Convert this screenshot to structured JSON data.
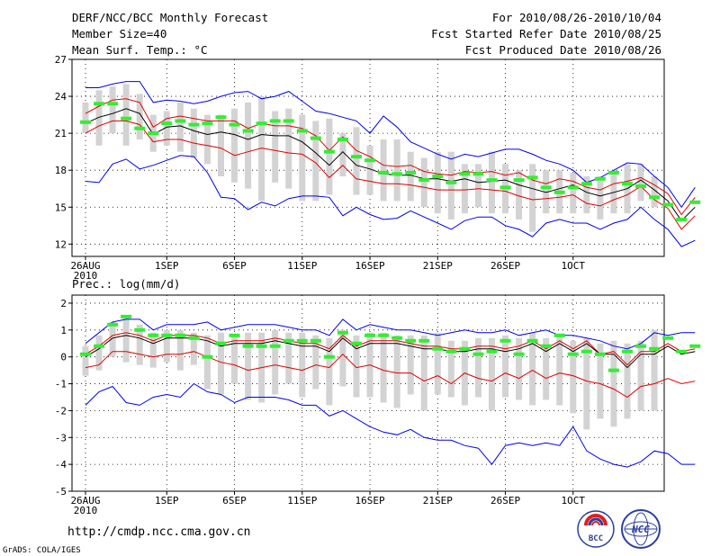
{
  "header": {
    "title": "DERF/NCC/BCC Monthly Forecast",
    "member_size": "Member Size=40",
    "variable": "Mean Surf. Temp.: °C",
    "forecast_range": "For 2010/08/26-2010/10/04",
    "start_date": "Fcst Started Refer Date 2010/08/25",
    "produced_date": "Fcst Produced Date 2010/08/26"
  },
  "footer": {
    "url": "http://cmdp.ncc.cma.gov.cn",
    "grads": "GrADS: COLA/IGES",
    "logo_bcc": "BCC",
    "logo_ncc": "NCC"
  },
  "colors": {
    "envelope": "#0000ee",
    "spread": "#e00000",
    "mean": "#000000",
    "median": "#33ee33",
    "box": "#d3d3d3"
  },
  "chart_data": [
    {
      "type": "line",
      "title": "Mean Surf. Temp.: °C",
      "ylim": [
        11,
        27
      ],
      "yticks": [
        12,
        15,
        18,
        21,
        24,
        27
      ],
      "grid": true,
      "x_tick_days": [
        0,
        6,
        11,
        16,
        21,
        26,
        31,
        36
      ],
      "x_tick_labels": [
        "26AUG",
        "1SEP",
        "6SEP",
        "11SEP",
        "16SEP",
        "21SEP",
        "26SEP",
        "1OCT"
      ],
      "x_year_label": "2010",
      "days": 40,
      "series": [
        {
          "name": "max",
          "values": [
            24.7,
            24.7,
            25.0,
            25.2,
            25.2,
            23.5,
            23.7,
            23.6,
            23.4,
            23.6,
            24.0,
            24.3,
            24.4,
            23.8,
            24.0,
            24.4,
            23.6,
            22.8,
            22.6,
            22.3,
            22.0,
            21.0,
            22.4,
            21.5,
            20.3,
            19.8,
            19.3,
            18.9,
            19.3,
            19.1,
            19.4,
            19.7,
            19.7,
            19.3,
            18.8,
            18.5,
            18.0,
            17.0,
            17.4,
            18.0,
            18.6,
            18.5,
            17.5,
            16.6,
            15.0,
            16.6
          ]
        },
        {
          "name": "p75",
          "values": [
            22.6,
            23.2,
            23.7,
            23.8,
            23.5,
            21.5,
            22.2,
            22.4,
            22.2,
            22.0,
            22.0,
            22.0,
            21.4,
            21.8,
            21.6,
            21.6,
            21.4,
            20.8,
            19.6,
            20.7,
            19.6,
            19.1,
            18.4,
            18.3,
            18.4,
            17.9,
            17.7,
            17.6,
            17.9,
            17.8,
            17.9,
            17.6,
            17.8,
            17.2,
            16.9,
            17.3,
            17.1,
            16.6,
            16.4,
            16.9,
            17.1,
            17.4,
            16.8,
            16.1,
            14.4,
            15.8
          ]
        },
        {
          "name": "mean",
          "values": [
            21.8,
            22.3,
            22.6,
            23.0,
            22.6,
            20.9,
            21.5,
            21.6,
            21.2,
            20.9,
            21.1,
            20.9,
            20.5,
            20.9,
            20.8,
            20.8,
            20.3,
            19.4,
            18.4,
            19.5,
            18.4,
            18.1,
            17.7,
            17.6,
            17.6,
            17.3,
            17.3,
            17.1,
            17.3,
            17.0,
            17.1,
            17.2,
            16.8,
            16.5,
            16.2,
            16.5,
            16.8,
            16.2,
            15.9,
            16.2,
            16.5,
            17.2,
            16.4,
            15.5,
            13.9,
            15.0
          ]
        },
        {
          "name": "p25",
          "values": [
            21.0,
            21.6,
            22.0,
            22.0,
            21.7,
            20.3,
            20.5,
            20.5,
            20.2,
            20.0,
            19.8,
            19.2,
            19.5,
            19.8,
            19.6,
            19.4,
            19.3,
            18.6,
            17.4,
            18.4,
            17.3,
            17.1,
            16.9,
            16.9,
            16.8,
            16.6,
            16.4,
            16.4,
            16.4,
            16.5,
            16.4,
            16.3,
            15.9,
            15.6,
            15.7,
            15.8,
            16.0,
            15.3,
            15.1,
            15.6,
            16.0,
            16.7,
            15.6,
            14.9,
            13.2,
            14.3
          ]
        },
        {
          "name": "min",
          "values": [
            17.1,
            17.0,
            18.5,
            18.9,
            18.1,
            18.4,
            18.8,
            19.2,
            19.1,
            17.8,
            15.8,
            15.7,
            14.8,
            15.4,
            15.1,
            15.7,
            15.9,
            15.9,
            15.8,
            14.3,
            15.0,
            14.4,
            14.0,
            14.1,
            14.7,
            14.2,
            13.7,
            13.2,
            13.9,
            14.2,
            14.2,
            13.5,
            13.2,
            12.6,
            13.7,
            14.0,
            13.7,
            13.7,
            13.2,
            13.7,
            14.0,
            15.0,
            14.0,
            13.2,
            11.8,
            12.3
          ]
        },
        {
          "name": "box_high",
          "values": [
            23.5,
            24.5,
            24.8,
            25.0,
            24.2,
            22.5,
            22.8,
            23.5,
            23.0,
            22.5,
            22.5,
            23.0,
            23.5,
            24.0,
            22.8,
            23.0,
            22.5,
            22.0,
            22.2,
            21.0,
            21.5,
            20.0,
            20.5,
            20.5,
            19.5,
            19.0,
            19.5,
            19.5,
            18.5,
            18.5,
            19.5,
            18.5,
            18.0,
            18.5,
            18.0,
            18.0,
            17.8,
            17.5,
            17.5,
            18.0,
            18.5,
            18.5,
            17.5,
            17.0,
            16.0,
            17.5
          ]
        },
        {
          "name": "box_low",
          "values": [
            21.0,
            20.0,
            21.0,
            20.0,
            20.5,
            19.5,
            20.0,
            19.5,
            19.0,
            18.5,
            17.5,
            17.0,
            16.5,
            15.5,
            17.0,
            16.5,
            15.5,
            15.5,
            16.0,
            17.5,
            16.0,
            16.0,
            15.5,
            15.5,
            15.5,
            15.0,
            14.5,
            14.0,
            14.5,
            15.0,
            14.5,
            14.5,
            14.0,
            13.0,
            14.5,
            14.5,
            14.5,
            14.5,
            14.0,
            14.5,
            14.5,
            15.5,
            15.0,
            14.5,
            12.5,
            13.5
          ]
        },
        {
          "name": "median",
          "values": [
            21.9,
            23.4,
            23.4,
            22.2,
            21.4,
            21.0,
            21.8,
            22.0,
            21.7,
            21.8,
            22.3,
            21.7,
            21.2,
            21.8,
            22.0,
            22.0,
            21.2,
            20.6,
            19.5,
            20.5,
            19.1,
            18.8,
            17.8,
            17.7,
            17.8,
            17.2,
            17.5,
            17.0,
            17.7,
            17.7,
            17.2,
            16.6,
            17.2,
            17.4,
            16.6,
            16.2,
            16.6,
            16.9,
            17.3,
            17.8,
            16.9,
            16.7,
            15.8,
            15.2,
            14.0,
            15.4
          ]
        }
      ]
    },
    {
      "type": "line",
      "title": "Prec.: log(mm/d)",
      "ylim": [
        -5,
        2.3
      ],
      "yticks": [
        -5,
        -4,
        -3,
        -2,
        -1,
        0,
        1,
        2
      ],
      "grid": true,
      "x_tick_days": [
        0,
        6,
        11,
        16,
        21,
        26,
        31,
        36
      ],
      "x_tick_labels": [
        "26AUG",
        "1SEP",
        "6SEP",
        "11SEP",
        "16SEP",
        "21SEP",
        "26SEP",
        "1OCT"
      ],
      "x_year_label": "2010",
      "days": 40,
      "series": [
        {
          "name": "max",
          "values": [
            0.5,
            0.9,
            1.3,
            1.4,
            1.4,
            1.0,
            1.2,
            1.2,
            1.2,
            1.3,
            1.0,
            1.1,
            1.2,
            1.2,
            1.2,
            1.1,
            1.0,
            1.0,
            0.8,
            1.4,
            1.0,
            1.2,
            1.1,
            1.0,
            1.0,
            0.9,
            0.8,
            0.9,
            1.0,
            0.9,
            0.9,
            1.0,
            0.8,
            0.9,
            1.0,
            0.8,
            0.8,
            0.7,
            0.6,
            0.4,
            0.3,
            0.5,
            0.9,
            0.8,
            0.9,
            0.9
          ]
        },
        {
          "name": "p75",
          "values": [
            0.1,
            0.4,
            0.8,
            0.9,
            0.8,
            0.6,
            0.8,
            0.8,
            0.8,
            0.7,
            0.5,
            0.6,
            0.6,
            0.6,
            0.7,
            0.6,
            0.5,
            0.5,
            0.3,
            0.8,
            0.4,
            0.6,
            0.6,
            0.6,
            0.5,
            0.4,
            0.4,
            0.3,
            0.3,
            0.4,
            0.4,
            0.3,
            0.4,
            0.6,
            0.3,
            0.6,
            0.3,
            0.6,
            0.1,
            0.2,
            -0.3,
            0.2,
            0.2,
            0.5,
            0.2,
            0.3
          ]
        },
        {
          "name": "mean",
          "values": [
            0.0,
            0.3,
            0.7,
            0.8,
            0.7,
            0.5,
            0.7,
            0.7,
            0.7,
            0.6,
            0.4,
            0.5,
            0.5,
            0.5,
            0.6,
            0.5,
            0.4,
            0.4,
            0.2,
            0.7,
            0.3,
            0.5,
            0.5,
            0.5,
            0.4,
            0.3,
            0.3,
            0.2,
            0.2,
            0.3,
            0.3,
            0.2,
            0.3,
            0.5,
            0.2,
            0.5,
            0.2,
            0.5,
            0.1,
            0.1,
            -0.4,
            0.1,
            0.1,
            0.4,
            0.1,
            0.2
          ]
        },
        {
          "name": "p25",
          "values": [
            -0.4,
            -0.3,
            0.2,
            0.2,
            0.1,
            0.0,
            0.1,
            0.1,
            0.2,
            0.0,
            -0.2,
            -0.3,
            -0.5,
            -0.4,
            -0.3,
            -0.4,
            -0.5,
            -0.3,
            -0.4,
            0.1,
            -0.4,
            -0.3,
            -0.5,
            -0.6,
            -0.6,
            -0.9,
            -0.7,
            -1.0,
            -0.6,
            -0.8,
            -0.9,
            -0.6,
            -0.8,
            -0.5,
            -0.8,
            -0.6,
            -0.7,
            -0.9,
            -1.0,
            -1.2,
            -1.5,
            -1.1,
            -1.0,
            -0.8,
            -1.0,
            -0.9
          ]
        },
        {
          "name": "min",
          "values": [
            -1.8,
            -1.3,
            -1.1,
            -1.7,
            -1.8,
            -1.5,
            -1.4,
            -1.5,
            -1.0,
            -1.3,
            -1.4,
            -1.7,
            -1.5,
            -1.5,
            -1.5,
            -1.6,
            -1.8,
            -1.8,
            -2.2,
            -2.0,
            -2.3,
            -2.6,
            -2.8,
            -2.9,
            -2.7,
            -3.0,
            -3.1,
            -3.1,
            -3.3,
            -3.4,
            -4.0,
            -3.3,
            -3.2,
            -3.3,
            -3.2,
            -3.3,
            -2.6,
            -3.5,
            -3.8,
            -4.0,
            -4.1,
            -3.9,
            -3.5,
            -3.6,
            -4.0,
            -4.0
          ]
        },
        {
          "name": "box_high",
          "values": [
            0.4,
            0.8,
            1.3,
            1.5,
            1.2,
            0.9,
            1.0,
            1.0,
            0.9,
            0.8,
            0.9,
            0.8,
            0.9,
            0.9,
            1.0,
            0.9,
            0.9,
            0.8,
            0.7,
            1.0,
            0.8,
            0.9,
            0.9,
            0.8,
            0.8,
            0.8,
            0.9,
            0.6,
            0.6,
            0.7,
            0.7,
            0.8,
            0.7,
            0.9,
            0.7,
            0.8,
            0.6,
            0.7,
            0.5,
            0.6,
            0.5,
            0.6,
            1.0,
            1.2,
            0.8,
            0.9
          ]
        },
        {
          "name": "box_low",
          "values": [
            -0.7,
            -0.5,
            0.0,
            -0.2,
            -0.3,
            -0.4,
            -0.2,
            -0.5,
            -0.3,
            -1.2,
            -1.4,
            -1.0,
            -1.6,
            -1.7,
            -1.4,
            -1.0,
            -1.5,
            -1.2,
            -1.8,
            -1.1,
            -1.5,
            -1.5,
            -1.7,
            -1.9,
            -1.4,
            -2.0,
            -1.4,
            -1.5,
            -1.8,
            -1.5,
            -2.0,
            -1.5,
            -1.6,
            -1.8,
            -1.6,
            -1.8,
            -2.1,
            -2.7,
            -2.3,
            -2.6,
            -2.3,
            -2.0,
            -2.0,
            -1.8,
            -2.2,
            -2.2
          ]
        },
        {
          "name": "median",
          "values": [
            0.1,
            0.4,
            1.2,
            1.5,
            1.0,
            0.8,
            0.8,
            0.8,
            0.7,
            0.0,
            0.5,
            0.8,
            0.4,
            0.4,
            0.4,
            0.6,
            0.6,
            0.6,
            0.0,
            0.9,
            0.5,
            0.8,
            0.8,
            0.7,
            0.6,
            0.6,
            0.3,
            0.2,
            0.3,
            0.1,
            0.2,
            0.6,
            0.1,
            0.6,
            0.4,
            0.8,
            0.1,
            0.2,
            0.1,
            -0.5,
            0.2,
            0.4,
            0.3,
            0.7,
            0.2,
            0.4
          ]
        }
      ]
    }
  ]
}
